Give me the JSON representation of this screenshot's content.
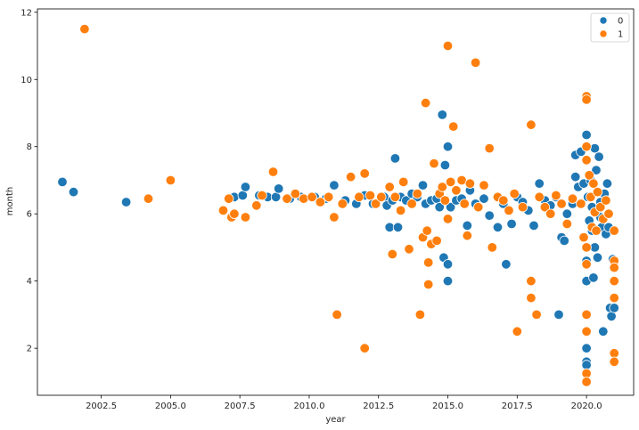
{
  "chart_data": {
    "type": "scatter",
    "xlabel": "year",
    "ylabel": "month",
    "xlim": [
      2000.2,
      2021.7
    ],
    "ylim": [
      0.6,
      12.1
    ],
    "xticks": [
      "2002.5",
      "2005.0",
      "2007.5",
      "2010.0",
      "2012.5",
      "2015.0",
      "2017.5",
      "2020.0"
    ],
    "yticks": [
      "2",
      "4",
      "6",
      "8",
      "10",
      "12"
    ],
    "grid": false,
    "legend": {
      "position": "top-right",
      "title": ""
    },
    "series": [
      {
        "name": "0",
        "color": "#1f77b4",
        "points": [
          [
            2001.1,
            6.95
          ],
          [
            2001.5,
            6.65
          ],
          [
            2003.4,
            6.35
          ],
          [
            2007.3,
            6.5
          ],
          [
            2007.6,
            6.55
          ],
          [
            2007.7,
            6.8
          ],
          [
            2008.2,
            6.55
          ],
          [
            2008.5,
            6.5
          ],
          [
            2008.8,
            6.5
          ],
          [
            2008.9,
            6.75
          ],
          [
            2009.3,
            6.45
          ],
          [
            2009.7,
            6.5
          ],
          [
            2010.2,
            6.5
          ],
          [
            2010.6,
            6.45
          ],
          [
            2010.9,
            6.85
          ],
          [
            2011.3,
            6.4
          ],
          [
            2011.7,
            6.3
          ],
          [
            2012.0,
            6.55
          ],
          [
            2012.3,
            6.3
          ],
          [
            2012.7,
            6.5
          ],
          [
            2012.8,
            6.25
          ],
          [
            2012.9,
            5.6
          ],
          [
            2013.0,
            6.4
          ],
          [
            2013.1,
            7.65
          ],
          [
            2013.2,
            5.6
          ],
          [
            2013.3,
            6.5
          ],
          [
            2013.5,
            6.4
          ],
          [
            2013.7,
            6.6
          ],
          [
            2013.9,
            6.5
          ],
          [
            2014.1,
            6.85
          ],
          [
            2014.2,
            6.3
          ],
          [
            2014.4,
            6.4
          ],
          [
            2014.6,
            6.45
          ],
          [
            2014.7,
            6.2
          ],
          [
            2014.8,
            8.95
          ],
          [
            2014.85,
            4.7
          ],
          [
            2014.9,
            7.45
          ],
          [
            2015.0,
            8.0
          ],
          [
            2015.0,
            4.5
          ],
          [
            2015.0,
            4.0
          ],
          [
            2015.1,
            6.2
          ],
          [
            2015.3,
            6.4
          ],
          [
            2015.5,
            6.45
          ],
          [
            2015.7,
            5.65
          ],
          [
            2015.8,
            6.7
          ],
          [
            2016.0,
            6.3
          ],
          [
            2016.3,
            6.45
          ],
          [
            2016.5,
            5.95
          ],
          [
            2016.8,
            5.6
          ],
          [
            2017.0,
            6.3
          ],
          [
            2017.1,
            4.5
          ],
          [
            2017.3,
            5.7
          ],
          [
            2017.5,
            6.5
          ],
          [
            2017.7,
            6.35
          ],
          [
            2017.9,
            6.1
          ],
          [
            2018.1,
            5.65
          ],
          [
            2018.3,
            6.9
          ],
          [
            2018.5,
            6.4
          ],
          [
            2018.7,
            6.25
          ],
          [
            2018.9,
            6.5
          ],
          [
            2019.0,
            3.0
          ],
          [
            2019.1,
            5.3
          ],
          [
            2019.2,
            5.2
          ],
          [
            2019.3,
            6.0
          ],
          [
            2019.5,
            6.3
          ],
          [
            2019.6,
            7.1
          ],
          [
            2019.6,
            7.75
          ],
          [
            2019.7,
            6.8
          ],
          [
            2019.8,
            7.85
          ],
          [
            2019.9,
            6.9
          ],
          [
            2020.0,
            8.35
          ],
          [
            2020.0,
            4.6
          ],
          [
            2020.0,
            4.0
          ],
          [
            2020.0,
            2.0
          ],
          [
            2020.0,
            1.6
          ],
          [
            2020.0,
            1.5
          ],
          [
            2020.05,
            6.5
          ],
          [
            2020.1,
            5.8
          ],
          [
            2020.15,
            7.0
          ],
          [
            2020.2,
            6.2
          ],
          [
            2020.2,
            5.5
          ],
          [
            2020.25,
            4.1
          ],
          [
            2020.3,
            7.95
          ],
          [
            2020.3,
            5.0
          ],
          [
            2020.35,
            7.3
          ],
          [
            2020.4,
            6.05
          ],
          [
            2020.4,
            4.7
          ],
          [
            2020.45,
            7.7
          ],
          [
            2020.5,
            6.35
          ],
          [
            2020.5,
            5.9
          ],
          [
            2020.55,
            5.6
          ],
          [
            2020.6,
            2.5
          ],
          [
            2020.65,
            6.6
          ],
          [
            2020.7,
            5.4
          ],
          [
            2020.75,
            6.9
          ],
          [
            2020.8,
            5.6
          ],
          [
            2020.85,
            3.2
          ],
          [
            2020.9,
            2.95
          ],
          [
            2020.95,
            4.65
          ],
          [
            2021.0,
            3.2
          ]
        ]
      },
      {
        "name": "1",
        "color": "#ff7f0e",
        "points": [
          [
            2001.9,
            11.5
          ],
          [
            2004.2,
            6.45
          ],
          [
            2005.0,
            7.0
          ],
          [
            2006.9,
            6.1
          ],
          [
            2007.1,
            6.45
          ],
          [
            2007.2,
            5.9
          ],
          [
            2007.3,
            6.0
          ],
          [
            2007.7,
            5.9
          ],
          [
            2008.1,
            6.25
          ],
          [
            2008.3,
            6.55
          ],
          [
            2008.7,
            7.25
          ],
          [
            2009.2,
            6.45
          ],
          [
            2009.5,
            6.6
          ],
          [
            2009.8,
            6.45
          ],
          [
            2010.1,
            6.5
          ],
          [
            2010.4,
            6.35
          ],
          [
            2010.7,
            6.5
          ],
          [
            2010.9,
            5.9
          ],
          [
            2011.0,
            3.0
          ],
          [
            2011.2,
            6.3
          ],
          [
            2011.5,
            7.1
          ],
          [
            2011.8,
            6.5
          ],
          [
            2012.0,
            7.2
          ],
          [
            2012.0,
            2.0
          ],
          [
            2012.2,
            6.55
          ],
          [
            2012.4,
            6.3
          ],
          [
            2012.6,
            6.5
          ],
          [
            2012.9,
            6.8
          ],
          [
            2013.0,
            4.8
          ],
          [
            2013.1,
            6.5
          ],
          [
            2013.3,
            6.1
          ],
          [
            2013.4,
            6.95
          ],
          [
            2013.6,
            4.95
          ],
          [
            2013.7,
            6.3
          ],
          [
            2013.9,
            6.6
          ],
          [
            2014.0,
            3.0
          ],
          [
            2014.1,
            5.3
          ],
          [
            2014.2,
            9.3
          ],
          [
            2014.25,
            5.5
          ],
          [
            2014.3,
            4.55
          ],
          [
            2014.3,
            3.9
          ],
          [
            2014.4,
            5.1
          ],
          [
            2014.5,
            7.5
          ],
          [
            2014.6,
            5.2
          ],
          [
            2014.7,
            6.6
          ],
          [
            2014.8,
            6.8
          ],
          [
            2014.9,
            6.4
          ],
          [
            2015.0,
            11.0
          ],
          [
            2015.0,
            5.85
          ],
          [
            2015.1,
            6.95
          ],
          [
            2015.2,
            8.6
          ],
          [
            2015.3,
            6.7
          ],
          [
            2015.5,
            7.0
          ],
          [
            2015.6,
            6.3
          ],
          [
            2015.7,
            5.35
          ],
          [
            2015.8,
            6.9
          ],
          [
            2016.0,
            10.5
          ],
          [
            2016.1,
            6.2
          ],
          [
            2016.3,
            6.85
          ],
          [
            2016.5,
            7.95
          ],
          [
            2016.6,
            5.0
          ],
          [
            2016.8,
            6.5
          ],
          [
            2017.0,
            6.4
          ],
          [
            2017.2,
            6.1
          ],
          [
            2017.4,
            6.6
          ],
          [
            2017.5,
            2.5
          ],
          [
            2017.7,
            6.2
          ],
          [
            2018.0,
            8.65
          ],
          [
            2018.0,
            4.0
          ],
          [
            2018.0,
            3.5
          ],
          [
            2018.2,
            3.0
          ],
          [
            2018.3,
            6.5
          ],
          [
            2018.5,
            6.2
          ],
          [
            2018.7,
            6.0
          ],
          [
            2018.9,
            6.55
          ],
          [
            2019.1,
            6.3
          ],
          [
            2019.3,
            5.7
          ],
          [
            2019.5,
            6.45
          ],
          [
            2019.8,
            6.3
          ],
          [
            2019.9,
            5.3
          ],
          [
            2020.0,
            9.5
          ],
          [
            2020.0,
            9.4
          ],
          [
            2020.0,
            8.0
          ],
          [
            2020.0,
            7.6
          ],
          [
            2020.0,
            5.0
          ],
          [
            2020.0,
            4.5
          ],
          [
            2020.0,
            3.0
          ],
          [
            2020.0,
            2.5
          ],
          [
            2020.0,
            1.25
          ],
          [
            2020.0,
            1.0
          ],
          [
            2020.1,
            7.15
          ],
          [
            2020.15,
            6.5
          ],
          [
            2020.2,
            5.6
          ],
          [
            2020.25,
            6.9
          ],
          [
            2020.3,
            6.05
          ],
          [
            2020.35,
            5.5
          ],
          [
            2020.4,
            6.65
          ],
          [
            2020.5,
            6.2
          ],
          [
            2020.6,
            5.85
          ],
          [
            2020.7,
            6.4
          ],
          [
            2020.8,
            6.0
          ],
          [
            2021.0,
            5.5
          ],
          [
            2021.0,
            4.6
          ],
          [
            2021.0,
            4.4
          ],
          [
            2021.0,
            4.0
          ],
          [
            2021.0,
            3.5
          ],
          [
            2021.0,
            1.85
          ],
          [
            2021.0,
            1.6
          ]
        ]
      }
    ]
  }
}
